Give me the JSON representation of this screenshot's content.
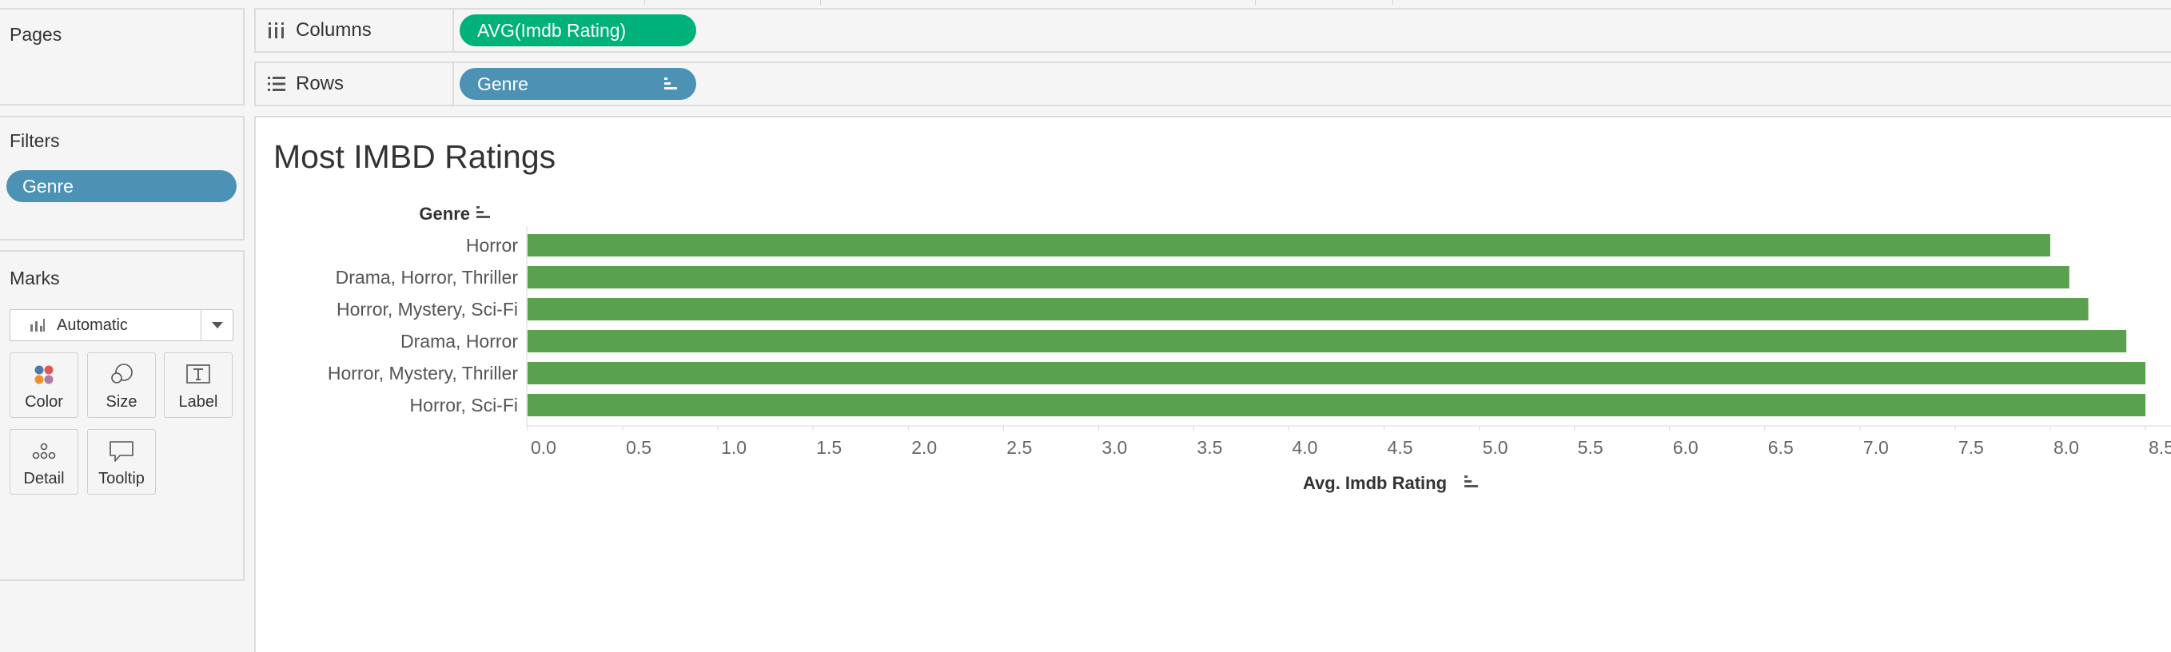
{
  "left_panel": {
    "pages": {
      "title": "Pages"
    },
    "filters": {
      "title": "Filters",
      "items": [
        "Genre"
      ]
    },
    "marks": {
      "title": "Marks",
      "type": "Automatic",
      "buttons": [
        "Color",
        "Size",
        "Label",
        "Detail",
        "Tooltip"
      ]
    }
  },
  "shelves": {
    "columns": {
      "label": "Columns",
      "pill": "AVG(Imdb Rating)"
    },
    "rows": {
      "label": "Rows",
      "pill": "Genre"
    }
  },
  "colors": {
    "bar": "#59a14f",
    "columns_pill": "#00b17a",
    "dimension_pill": "#4c92b5"
  },
  "chart_data": {
    "type": "bar",
    "orientation": "horizontal",
    "title": "Most IMBD Ratings",
    "ylabel": "Genre",
    "xlabel": "Avg. Imdb Rating",
    "categories": [
      "Horror",
      "Drama, Horror, Thriller",
      "Horror, Mystery, Sci-Fi",
      "Drama, Horror",
      "Horror, Mystery, Thriller",
      "Horror, Sci-Fi"
    ],
    "values": [
      8.0,
      8.1,
      8.2,
      8.4,
      8.5,
      8.5
    ],
    "xlim": [
      0,
      8.5
    ],
    "xticks": [
      "0.0",
      "0.5",
      "1.0",
      "1.5",
      "2.0",
      "2.5",
      "3.0",
      "3.5",
      "4.0",
      "4.5",
      "5.0",
      "5.5",
      "6.0",
      "6.5",
      "7.0",
      "7.5",
      "8.0",
      "8.5"
    ]
  }
}
